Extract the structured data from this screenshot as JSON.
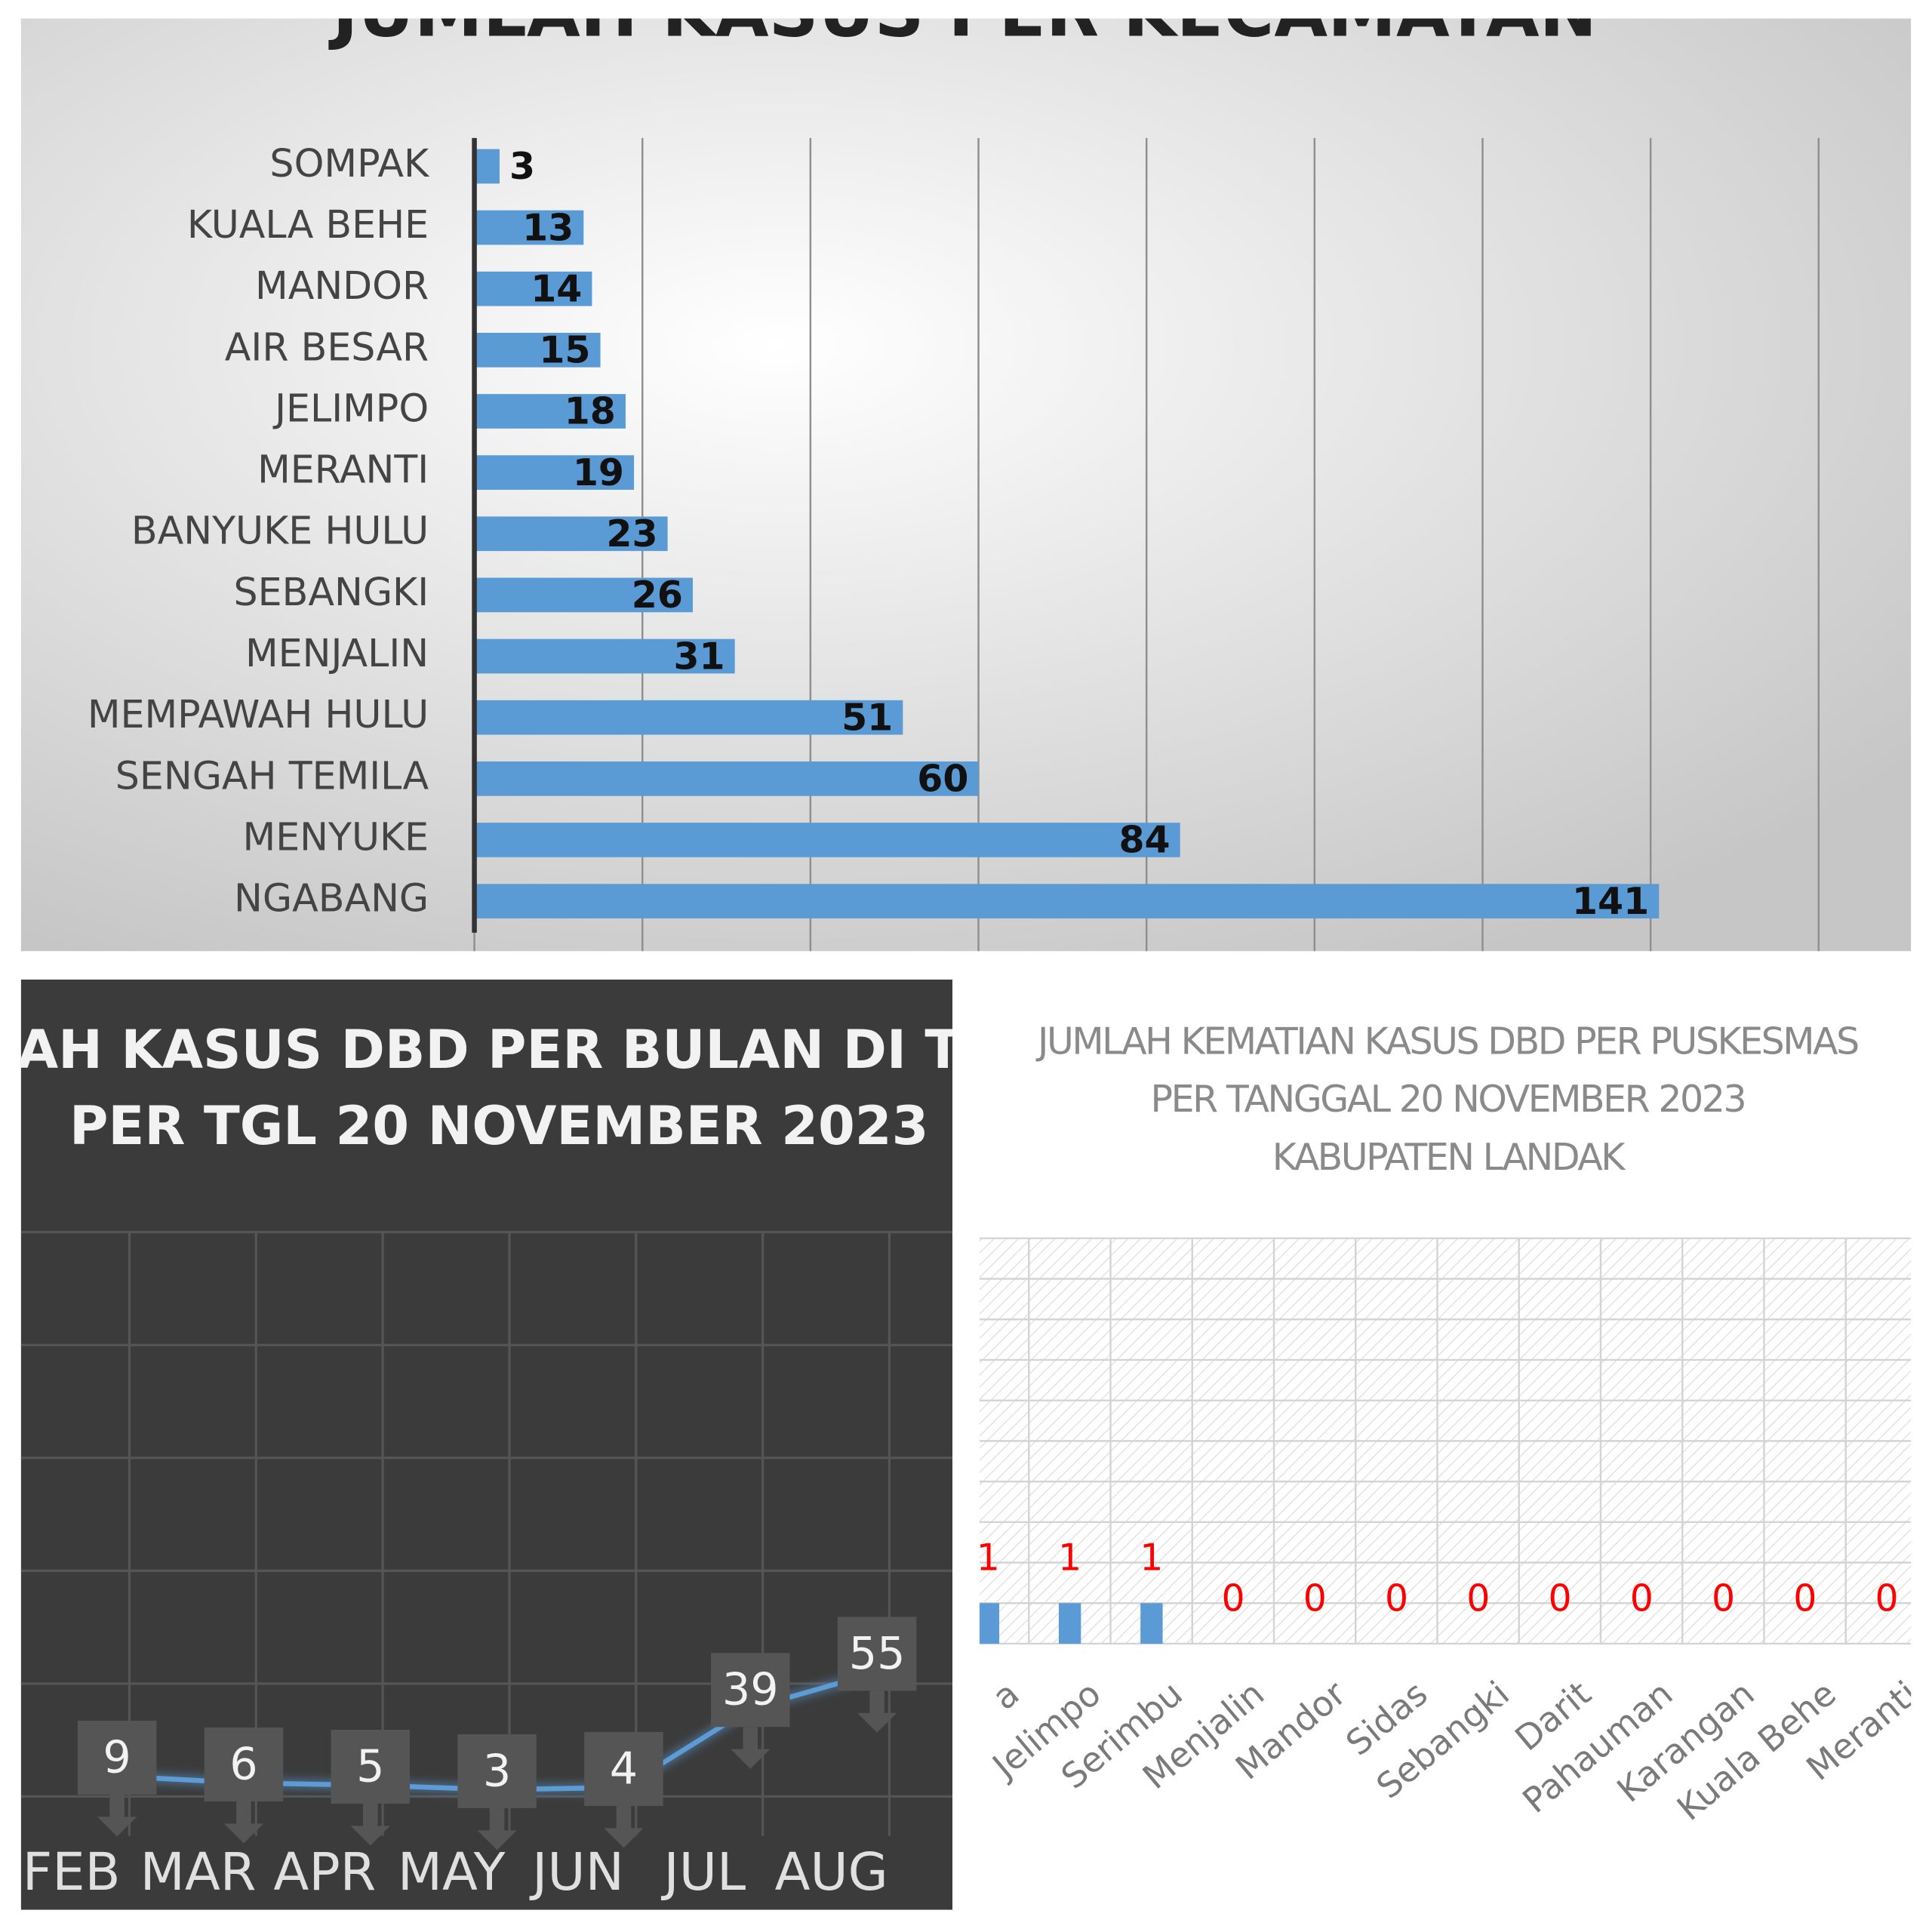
{
  "chart_data": [
    {
      "type": "hbar",
      "title": "JUMLAH KASUS PER KECAMATAN",
      "categories": [
        "SOMPAK",
        "KUALA BEHE",
        "MANDOR",
        "AIR BESAR",
        "JELIMPO",
        "MERANTI",
        "BANYUKE HULU",
        "SEBANGKI",
        "MENJALIN",
        "MEMPAWAH HULU",
        "SENGAH TEMILA",
        "MENYUKE",
        "NGABANG"
      ],
      "values": [
        3,
        13,
        14,
        15,
        18,
        19,
        23,
        26,
        31,
        51,
        60,
        84,
        141
      ],
      "color": "#5b9bd5",
      "xlim": [
        0,
        160
      ],
      "xticks": [
        0,
        20,
        40,
        60,
        80,
        100,
        120,
        140,
        160
      ],
      "grid": true
    },
    {
      "type": "line",
      "title": [
        "AH KASUS DBD PER BULAN DI TAHU",
        "PER TGL 20 NOVEMBER 2023"
      ],
      "categories": [
        "FEB",
        "MAR",
        "APR",
        "MAY",
        "JUN",
        "JUL",
        "AUG"
      ],
      "values": [
        9,
        6,
        5,
        3,
        4,
        39,
        55
      ],
      "color": "#5b9bd5",
      "ylim": [
        0,
        250
      ],
      "yticks": [
        0,
        50,
        100,
        150,
        200,
        250
      ],
      "grid": true
    },
    {
      "type": "bar",
      "title": [
        "JUMLAH KEMATIAN KASUS DBD PER PUSKESMAS",
        "PER TANGGAL 20 NOVEMBER 2023",
        "KABUPATEN LANDAK"
      ],
      "categories": [
        "a",
        "Jelimpo",
        "Serimbu",
        "Menjalin",
        "Mandor",
        "Sidas",
        "Sebangki",
        "Darit",
        "Pahauman",
        "Karangan",
        "Kuala Behe",
        "Meranti"
      ],
      "values": [
        1,
        1,
        1,
        0,
        0,
        0,
        0,
        0,
        0,
        0,
        0,
        0
      ],
      "color": "#5b9bd5",
      "label_color": "#ff0000",
      "ylim": [
        0,
        10
      ],
      "yticks": [
        0,
        1,
        2,
        3,
        4,
        5,
        6,
        7,
        8,
        9,
        10
      ],
      "grid": true
    }
  ]
}
